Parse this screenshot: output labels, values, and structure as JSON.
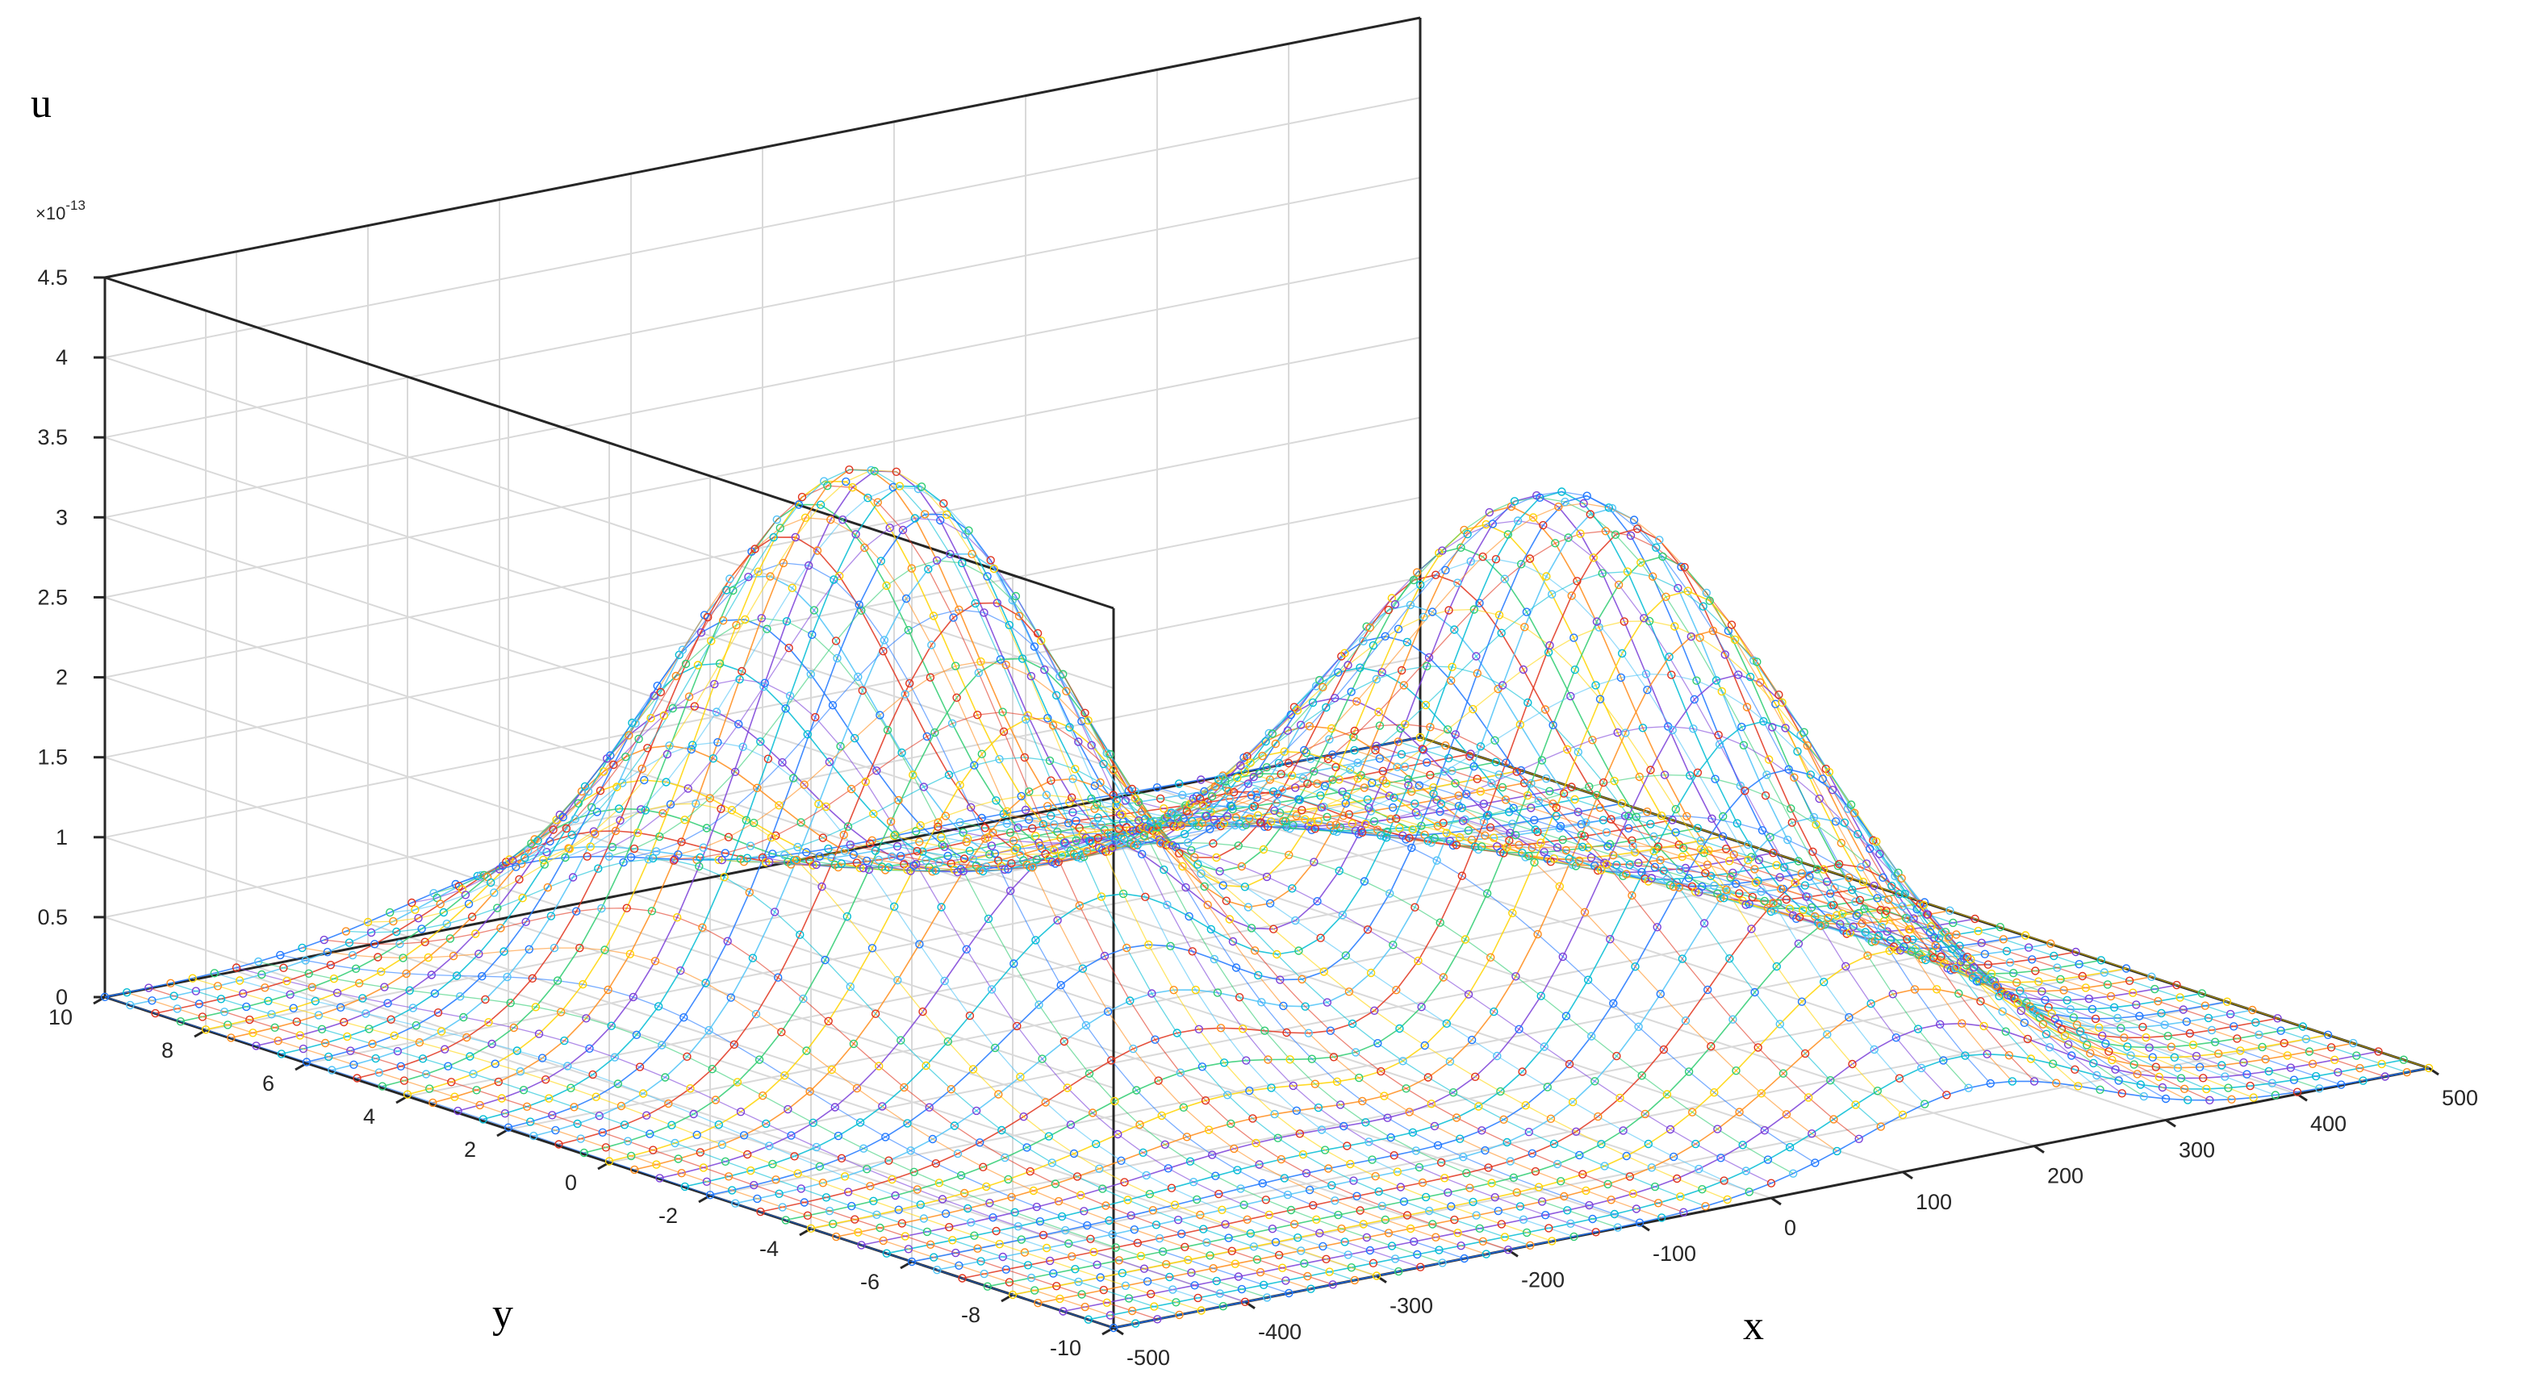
{
  "chart_data": {
    "type": "surface-3d",
    "description_series": "mesh of lines with circle markers, two Gaussian-shaped humps",
    "zlabel": "u",
    "xlabel": "x",
    "ylabel": "y",
    "z_exponent_label": "×10",
    "z_exponent_power": "-13",
    "xlim": [
      -500,
      500
    ],
    "ylim": [
      -10,
      10
    ],
    "zlim": [
      0,
      4.5e-13
    ],
    "x_ticks": [
      "-500",
      "-400",
      "-300",
      "-200",
      "-100",
      "0",
      "100",
      "200",
      "300",
      "400",
      "500"
    ],
    "y_ticks": [
      "-10",
      "-8",
      "-6",
      "-4",
      "-2",
      "0",
      "2",
      "4",
      "6",
      "8",
      "10"
    ],
    "z_ticks": [
      "0",
      "0.5",
      "1",
      "1.5",
      "2",
      "2.5",
      "3",
      "3.5",
      "4",
      "4.5"
    ],
    "grid": true,
    "surface_model": {
      "humps": [
        {
          "center_x": -180,
          "center_y": 3,
          "sigma_x": 95,
          "sigma_y": 3.2,
          "peak": 3.5e-13
        },
        {
          "center_x": 160,
          "center_y": -2,
          "sigma_x": 90,
          "sigma_y": 4.0,
          "peak": 3.3e-13
        }
      ],
      "x_samples": 61,
      "y_samples": 41
    },
    "series_colors": [
      "#1f77ff",
      "#00bcd4",
      "#7b3fd8",
      "#ff8c1a",
      "#ffd400",
      "#2ecc71",
      "#e0321c",
      "#4fc3f7"
    ]
  }
}
